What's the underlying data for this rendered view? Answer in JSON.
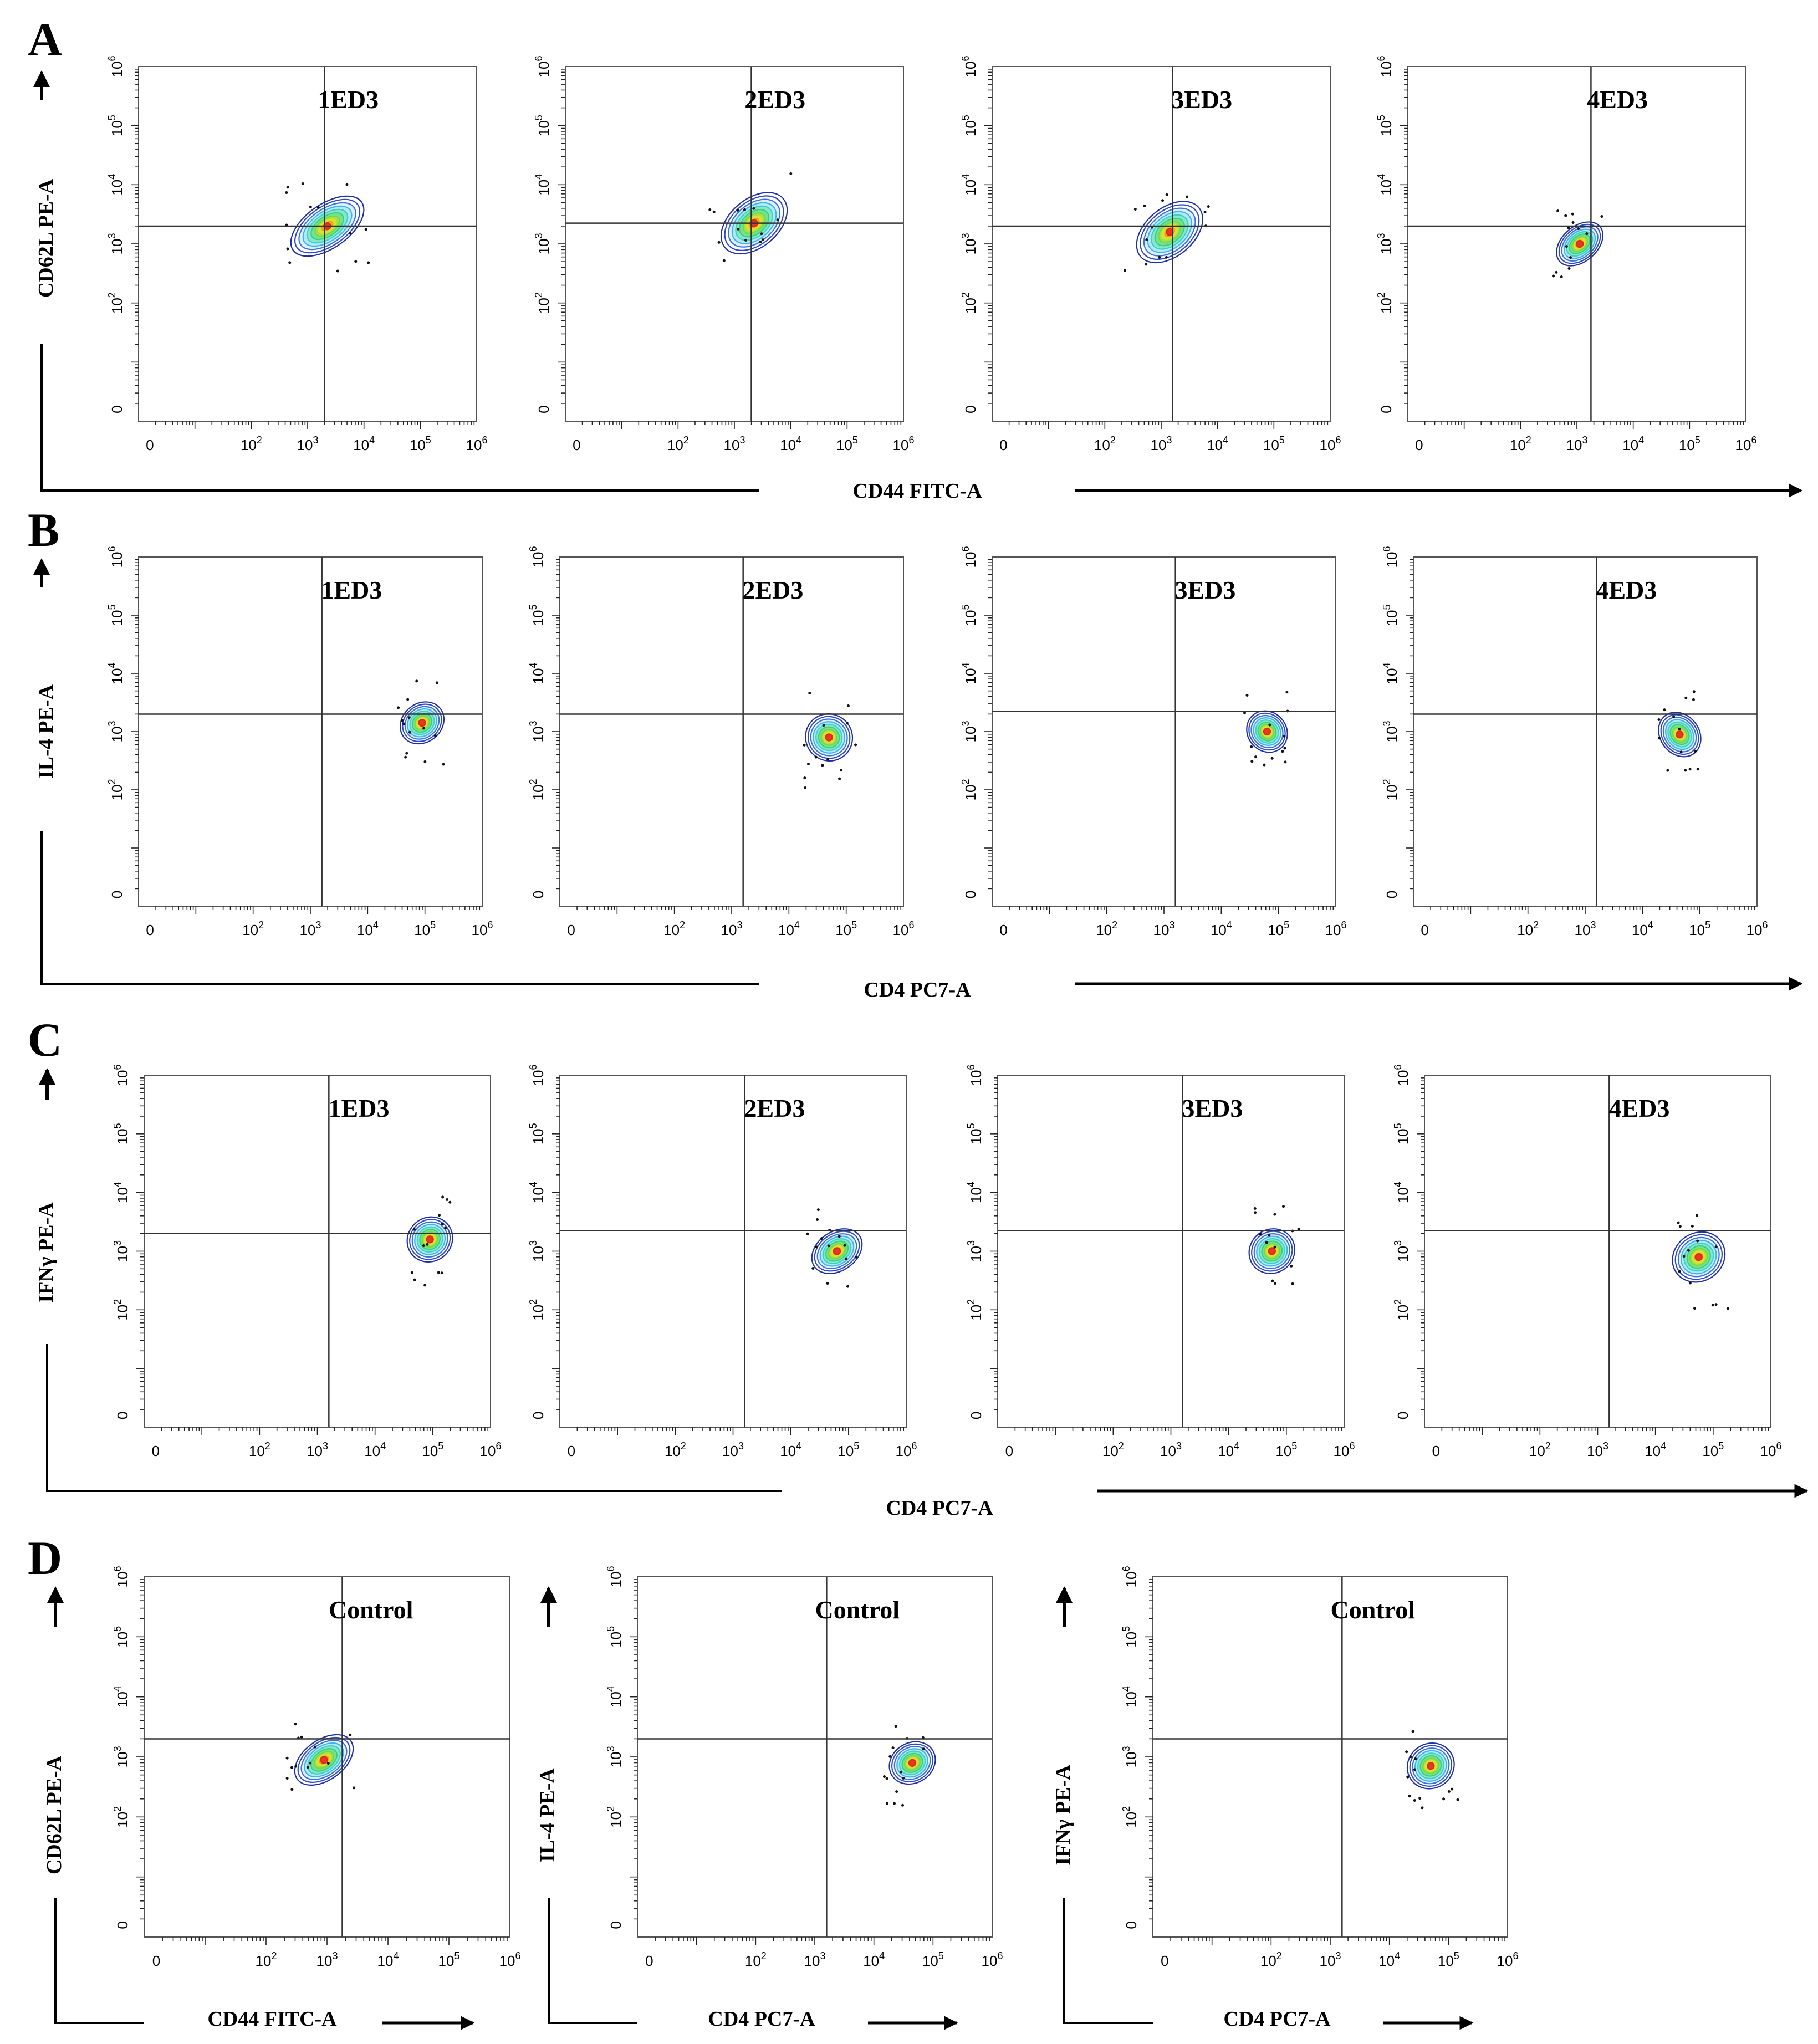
{
  "figure": {
    "panels": [
      {
        "letter": "A",
        "x_axis_title": "CD44 FITC-A",
        "y_axis_title": "CD62L PE-A",
        "plots": [
          {
            "label": "1ED3",
            "gate_x": 3.3,
            "gate_y": 3.3
          },
          {
            "label": "2ED3",
            "gate_x": 3.3,
            "gate_y": 3.35
          },
          {
            "label": "3ED3",
            "gate_x": 3.2,
            "gate_y": 3.3
          },
          {
            "label": "4ED3",
            "gate_x": 3.25,
            "gate_y": 3.3
          }
        ]
      },
      {
        "letter": "B",
        "x_axis_title": "CD4 PC7-A",
        "y_axis_title": "IL-4  PE-A",
        "plots": [
          {
            "label": "1ED3",
            "gate_x": 3.2,
            "gate_y": 3.3
          },
          {
            "label": "2ED3",
            "gate_x": 3.2,
            "gate_y": 3.3
          },
          {
            "label": "3ED3",
            "gate_x": 3.2,
            "gate_y": 3.35
          },
          {
            "label": "4ED3",
            "gate_x": 3.2,
            "gate_y": 3.3
          }
        ]
      },
      {
        "letter": "C",
        "x_axis_title": "CD4 PC7-A",
        "y_axis_title": "IFNγ PE-A",
        "plots": [
          {
            "label": "1ED3",
            "gate_x": 3.2,
            "gate_y": 3.3
          },
          {
            "label": "2ED3",
            "gate_x": 3.2,
            "gate_y": 3.35
          },
          {
            "label": "3ED3",
            "gate_x": 3.2,
            "gate_y": 3.35
          },
          {
            "label": "4ED3",
            "gate_x": 3.2,
            "gate_y": 3.35
          }
        ]
      },
      {
        "letter": "D",
        "plots": [
          {
            "label": "Control",
            "gate_x": 3.25,
            "gate_y": 3.3,
            "x_axis_title": "CD44 FITC-A",
            "y_axis_title": "CD62L PE-A"
          },
          {
            "label": "Control",
            "gate_x": 3.2,
            "gate_y": 3.3,
            "x_axis_title": "CD4 PC7-A",
            "y_axis_title": "IL-4 PE-A"
          },
          {
            "label": "Control",
            "gate_x": 3.2,
            "gate_y": 3.3,
            "x_axis_title": "CD4 PC7-A",
            "y_axis_title": "IFNγ PE-A"
          }
        ]
      }
    ]
  },
  "axis": {
    "tick_labels": [
      {
        "value": 0,
        "base": "0",
        "exp": ""
      },
      {
        "value": 2,
        "base": "10",
        "exp": "2"
      },
      {
        "value": 3,
        "base": "10",
        "exp": "3"
      },
      {
        "value": 4,
        "base": "10",
        "exp": "4"
      },
      {
        "value": 5,
        "base": "10",
        "exp": "5"
      },
      {
        "value": 6,
        "base": "10",
        "exp": "6"
      }
    ]
  },
  "chart_data": [
    {
      "type": "scatter",
      "title": "A 1ED3",
      "xlabel": "CD44 FITC-A",
      "ylabel": "CD62L PE-A",
      "xlim": [
        0,
        6
      ],
      "ylim": [
        0,
        6
      ],
      "scale": "log",
      "population": {
        "center": [
          3.35,
          3.3
        ],
        "spread": [
          0.55,
          0.5
        ],
        "rho": 0.85
      },
      "gate": [
        3.3,
        3.3
      ]
    },
    {
      "type": "scatter",
      "title": "A 2ED3",
      "xlabel": "CD44 FITC-A",
      "ylabel": "CD62L PE-A",
      "xlim": [
        0,
        6
      ],
      "ylim": [
        0,
        6
      ],
      "scale": "log",
      "population": {
        "center": [
          3.35,
          3.35
        ],
        "spread": [
          0.5,
          0.55
        ],
        "rho": 0.85
      },
      "gate": [
        3.3,
        3.35
      ]
    },
    {
      "type": "scatter",
      "title": "A 3ED3",
      "xlabel": "CD44 FITC-A",
      "ylabel": "CD62L PE-A",
      "xlim": [
        0,
        6
      ],
      "ylim": [
        0,
        6
      ],
      "scale": "log",
      "population": {
        "center": [
          3.15,
          3.2
        ],
        "spread": [
          0.5,
          0.55
        ],
        "rho": 0.85
      },
      "gate": [
        3.2,
        3.3
      ]
    },
    {
      "type": "scatter",
      "title": "A 4ED3",
      "xlabel": "CD44 FITC-A",
      "ylabel": "CD62L PE-A",
      "xlim": [
        0,
        6
      ],
      "ylim": [
        0,
        6
      ],
      "scale": "log",
      "population": {
        "center": [
          3.05,
          3.0
        ],
        "spread": [
          0.35,
          0.4
        ],
        "rho": 0.85
      },
      "gate": [
        3.25,
        3.3
      ]
    },
    {
      "type": "scatter",
      "title": "B 1ED3",
      "xlabel": "CD4 PC7-A",
      "ylabel": "IL-4 PE-A",
      "xlim": [
        0,
        6
      ],
      "ylim": [
        0,
        6
      ],
      "scale": "log",
      "population": {
        "center": [
          4.95,
          3.15
        ],
        "spread": [
          0.3,
          0.45
        ],
        "rho": 0.6
      },
      "gate": [
        3.2,
        3.3
      ]
    },
    {
      "type": "scatter",
      "title": "B 2ED3",
      "xlabel": "CD4 PC7-A",
      "ylabel": "IL-4 PE-A",
      "xlim": [
        0,
        6
      ],
      "ylim": [
        0,
        6
      ],
      "scale": "log",
      "population": {
        "center": [
          4.7,
          2.9
        ],
        "spread": [
          0.3,
          0.55
        ],
        "rho": 0.6
      },
      "gate": [
        3.2,
        3.3
      ]
    },
    {
      "type": "scatter",
      "title": "B 3ED3",
      "xlabel": "CD4 PC7-A",
      "ylabel": "IL-4 PE-A",
      "xlim": [
        0,
        6
      ],
      "ylim": [
        0,
        6
      ],
      "scale": "log",
      "population": {
        "center": [
          4.8,
          3.0
        ],
        "spread": [
          0.25,
          0.5
        ],
        "rho": 0.5
      },
      "gate": [
        3.2,
        3.35
      ]
    },
    {
      "type": "scatter",
      "title": "B 4ED3",
      "xlabel": "CD4 PC7-A",
      "ylabel": "IL-4 PE-A",
      "xlim": [
        0,
        6
      ],
      "ylim": [
        0,
        6
      ],
      "scale": "log",
      "population": {
        "center": [
          4.65,
          2.95
        ],
        "spread": [
          0.25,
          0.55
        ],
        "rho": 0.4
      },
      "gate": [
        3.2,
        3.3
      ]
    },
    {
      "type": "scatter",
      "title": "C 1ED3",
      "xlabel": "CD4 PC7-A",
      "ylabel": "IFNγ PE-A",
      "xlim": [
        0,
        6
      ],
      "ylim": [
        0,
        6
      ],
      "scale": "log",
      "population": {
        "center": [
          4.95,
          3.2
        ],
        "spread": [
          0.3,
          0.5
        ],
        "rho": 0.6
      },
      "gate": [
        3.2,
        3.3
      ]
    },
    {
      "type": "scatter",
      "title": "C 2ED3",
      "xlabel": "CD4 PC7-A",
      "ylabel": "IFNγ PE-A",
      "xlim": [
        0,
        6
      ],
      "ylim": [
        0,
        6
      ],
      "scale": "log",
      "population": {
        "center": [
          4.8,
          3.0
        ],
        "spread": [
          0.35,
          0.45
        ],
        "rho": 0.6
      },
      "gate": [
        3.2,
        3.35
      ]
    },
    {
      "type": "scatter",
      "title": "C 3ED3",
      "xlabel": "CD4 PC7-A",
      "ylabel": "IFNγ PE-A",
      "xlim": [
        0,
        6
      ],
      "ylim": [
        0,
        6
      ],
      "scale": "log",
      "population": {
        "center": [
          4.75,
          3.0
        ],
        "spread": [
          0.3,
          0.5
        ],
        "rho": 0.5
      },
      "gate": [
        3.2,
        3.35
      ]
    },
    {
      "type": "scatter",
      "title": "C 4ED3",
      "xlabel": "CD4 PC7-A",
      "ylabel": "IFNγ PE-A",
      "xlim": [
        0,
        6
      ],
      "ylim": [
        0,
        6
      ],
      "scale": "log",
      "population": {
        "center": [
          4.75,
          2.9
        ],
        "spread": [
          0.35,
          0.55
        ],
        "rho": 0.5
      },
      "gate": [
        3.2,
        3.35
      ]
    },
    {
      "type": "scatter",
      "title": "D Control",
      "xlabel": "CD44 FITC-A",
      "ylabel": "CD62L PE-A",
      "xlim": [
        0,
        6
      ],
      "ylim": [
        0,
        6
      ],
      "scale": "log",
      "population": {
        "center": [
          2.95,
          2.95
        ],
        "spread": [
          0.4,
          0.45
        ],
        "rho": 0.75
      },
      "gate": [
        3.25,
        3.3
      ]
    },
    {
      "type": "scatter",
      "title": "D Control",
      "xlabel": "CD4 PC7-A",
      "ylabel": "IL-4 PE-A",
      "xlim": [
        0,
        6
      ],
      "ylim": [
        0,
        6
      ],
      "scale": "log",
      "population": {
        "center": [
          4.65,
          2.9
        ],
        "spread": [
          0.3,
          0.45
        ],
        "rho": 0.45
      },
      "gate": [
        3.2,
        3.3
      ]
    },
    {
      "type": "scatter",
      "title": "D Control",
      "xlabel": "CD4 PC7-A",
      "ylabel": "IFNγ PE-A",
      "xlim": [
        0,
        6
      ],
      "ylim": [
        0,
        6
      ],
      "scale": "log",
      "population": {
        "center": [
          4.7,
          2.85
        ],
        "spread": [
          0.3,
          0.5
        ],
        "rho": 0.45
      },
      "gate": [
        3.2,
        3.3
      ]
    }
  ]
}
